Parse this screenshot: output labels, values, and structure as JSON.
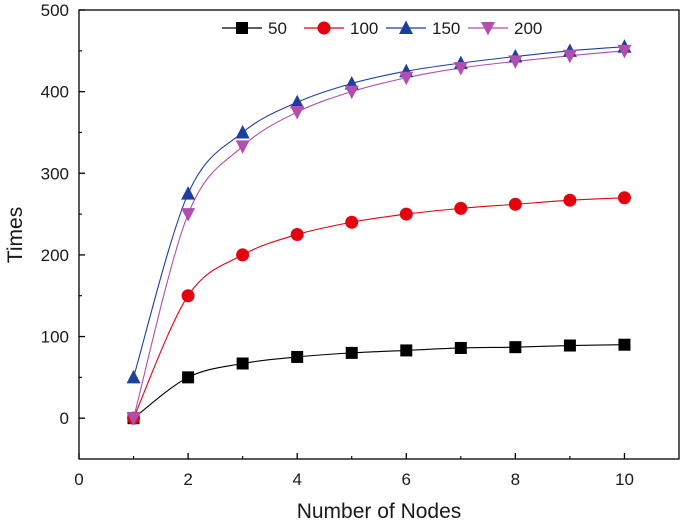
{
  "chart_data": {
    "type": "line",
    "title": "",
    "xlabel": "Number of Nodes",
    "ylabel": "Times",
    "xlim": [
      0,
      11
    ],
    "ylim": [
      -50,
      500
    ],
    "xticks": [
      0,
      2,
      4,
      6,
      8,
      10
    ],
    "yticks": [
      0,
      100,
      200,
      300,
      400,
      500
    ],
    "grid": false,
    "legend_position": "top-center",
    "x": [
      1,
      2,
      3,
      4,
      5,
      6,
      7,
      8,
      9,
      10
    ],
    "series": [
      {
        "name": "50",
        "color": "#000000",
        "marker": "square",
        "values": [
          0,
          50,
          67,
          75,
          80,
          83,
          86,
          87,
          89,
          90
        ]
      },
      {
        "name": "100",
        "color": "#e3000f",
        "marker": "circle",
        "values": [
          0,
          150,
          200,
          225,
          240,
          250,
          257,
          262,
          267,
          270
        ]
      },
      {
        "name": "150",
        "color": "#1f3f9f",
        "marker": "triangle-up",
        "values": [
          50,
          275,
          350,
          387,
          410,
          425,
          435,
          443,
          450,
          455
        ]
      },
      {
        "name": "200",
        "color": "#b04fb0",
        "marker": "triangle-down",
        "values": [
          0,
          250,
          333,
          375,
          400,
          417,
          429,
          437,
          444,
          450
        ]
      }
    ]
  }
}
